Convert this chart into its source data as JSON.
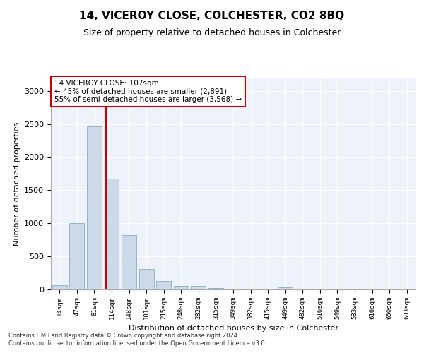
{
  "title": "14, VICEROY CLOSE, COLCHESTER, CO2 8BQ",
  "subtitle": "Size of property relative to detached houses in Colchester",
  "xlabel": "Distribution of detached houses by size in Colchester",
  "ylabel": "Number of detached properties",
  "bar_color": "#ccd9e8",
  "bar_edge_color": "#7aa0c0",
  "background_color": "#eef2fa",
  "categories": [
    "14sqm",
    "47sqm",
    "81sqm",
    "114sqm",
    "148sqm",
    "181sqm",
    "215sqm",
    "248sqm",
    "282sqm",
    "315sqm",
    "349sqm",
    "382sqm",
    "415sqm",
    "449sqm",
    "482sqm",
    "516sqm",
    "549sqm",
    "583sqm",
    "616sqm",
    "650sqm",
    "683sqm"
  ],
  "values": [
    60,
    1000,
    2460,
    1670,
    820,
    310,
    130,
    55,
    50,
    20,
    0,
    0,
    0,
    30,
    0,
    0,
    0,
    0,
    0,
    0,
    0
  ],
  "ylim": [
    0,
    3200
  ],
  "yticks": [
    0,
    500,
    1000,
    1500,
    2000,
    2500,
    3000
  ],
  "vline_x": 2.67,
  "annotation_text": "14 VICEROY CLOSE: 107sqm\n← 45% of detached houses are smaller (2,891)\n55% of semi-detached houses are larger (3,568) →",
  "annotation_box_color": "#ffffff",
  "annotation_box_edge_color": "#cc0000",
  "vline_color": "#cc0000",
  "footer_line1": "Contains HM Land Registry data © Crown copyright and database right 2024.",
  "footer_line2": "Contains public sector information licensed under the Open Government Licence v3.0."
}
